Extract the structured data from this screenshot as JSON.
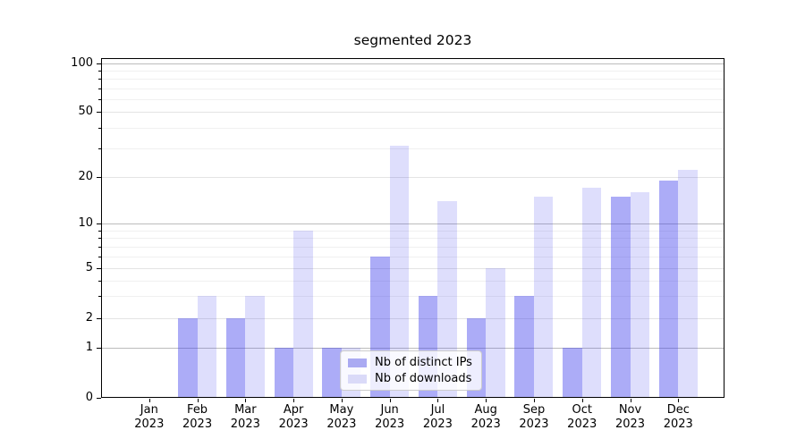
{
  "chart_data": {
    "type": "bar",
    "title": "segmented 2023",
    "categories": [
      "Jan 2023",
      "Feb 2023",
      "Mar 2023",
      "Apr 2023",
      "May 2023",
      "Jun 2023",
      "Jul 2023",
      "Aug 2023",
      "Sep 2023",
      "Oct 2023",
      "Nov 2023",
      "Dec 2023"
    ],
    "series": [
      {
        "name": "Nb of distinct IPs",
        "values": [
          0,
          2,
          2,
          1,
          1,
          6,
          3,
          2,
          3,
          1,
          15,
          19
        ],
        "bar_color": "rgba(58,58,235,0.42)",
        "swatch_color": "#aaaaf2"
      },
      {
        "name": "Nb of downloads",
        "values": [
          0,
          3,
          3,
          9,
          1,
          31,
          14,
          5,
          15,
          17,
          16,
          22
        ],
        "bar_color": "rgba(58,58,235,0.17)",
        "swatch_color": "#dadaf8"
      }
    ],
    "xlabel": "",
    "ylabel": "",
    "yscale": "symlog",
    "yticks": [
      0,
      1,
      2,
      5,
      10,
      20,
      50,
      100
    ],
    "ylim": [
      0,
      108
    ],
    "grid": "horizontal",
    "legend_position": "lower center",
    "colors": {
      "grid_major": "#bcbcbc",
      "grid_mid": "#e4e4e4",
      "grid_minor": "#f0f0f0",
      "axis": "#000000",
      "background": "#ffffff"
    }
  }
}
